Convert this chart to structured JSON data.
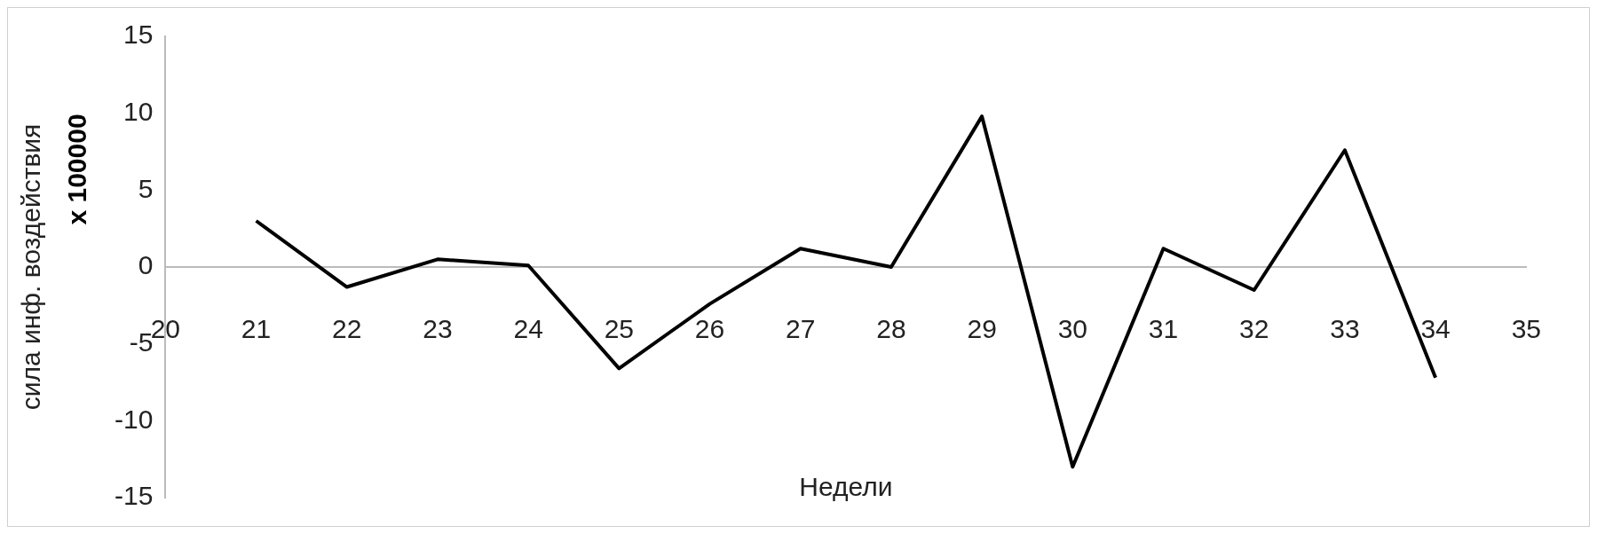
{
  "chart_data": {
    "type": "line",
    "xlabel": "Недели",
    "ylabel": "сила инф. воздействия",
    "annotations": [
      "x 100000"
    ],
    "x": [
      21,
      22,
      23,
      24,
      25,
      26,
      27,
      28,
      29,
      30,
      31,
      32,
      33,
      34
    ],
    "series": [
      {
        "color": "#000000",
        "values": [
          3.0,
          -1.3,
          0.5,
          0.1,
          -6.6,
          -2.4,
          1.2,
          0,
          9.8,
          -13,
          1.2,
          -1.5,
          7.6,
          -7.2
        ]
      }
    ],
    "xlim": [
      20,
      35
    ],
    "xticks": [
      20,
      21,
      22,
      23,
      24,
      25,
      26,
      27,
      28,
      29,
      30,
      31,
      32,
      33,
      34,
      35
    ],
    "ylim": [
      -15,
      15
    ],
    "yticks": [
      -15,
      -10,
      -5,
      0,
      5,
      10,
      15
    ],
    "grid": false,
    "legend": false,
    "marker": "none",
    "line_style": "solid"
  }
}
